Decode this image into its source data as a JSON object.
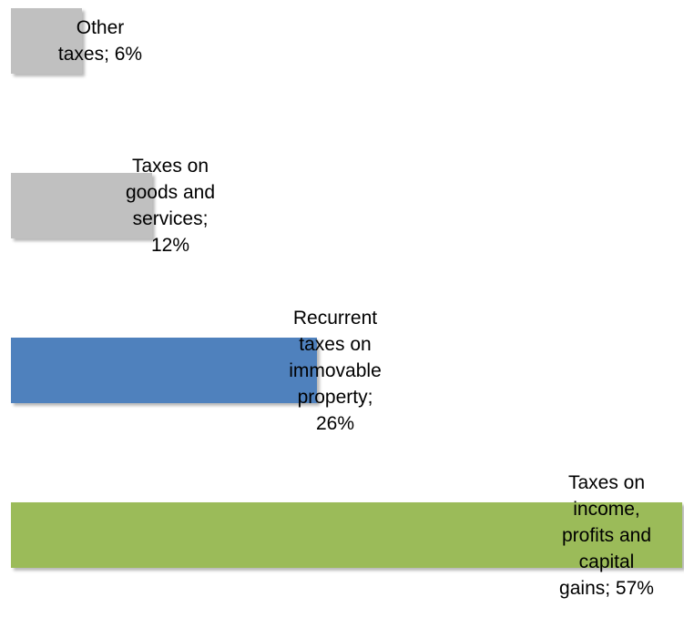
{
  "chart_data": {
    "type": "bar",
    "orientation": "horizontal",
    "categories": [
      "Other taxes",
      "Taxes on goods and services",
      "Recurrent taxes on immovable property",
      "Taxes on income, profits and capital gains"
    ],
    "values": [
      6,
      12,
      26,
      57
    ],
    "value_unit": "%",
    "data_labels": [
      "Other\ntaxes; 6%",
      "Taxes on\ngoods and\nservices;\n12%",
      "Recurrent\ntaxes on\nimmovable\nproperty;\n26%",
      "Taxes on\nincome,\nprofits and\ncapital\ngains; 57%"
    ],
    "colors": [
      "#C0C0C0",
      "#C0C0C0",
      "#4F81BD",
      "#9BBB59"
    ],
    "title": "",
    "xlabel": "",
    "ylabel": "",
    "axes_visible": false,
    "grid": false,
    "legend": "none"
  }
}
